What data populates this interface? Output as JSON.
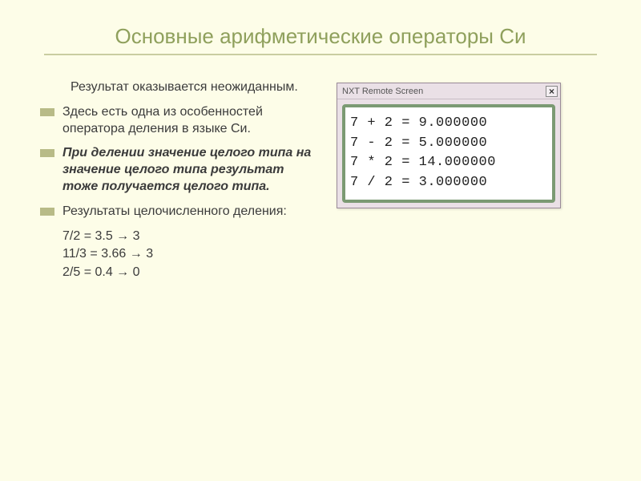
{
  "title": "Основные арифметические операторы Си",
  "intro": "Результат оказывается неожиданным.",
  "bullets": [
    {
      "text": "Здесь есть одна из особенностей оператора деления в языке Си.",
      "bold": false
    },
    {
      "text": "При делении значение целого типа на значение целого типа результат тоже получается целого типа.",
      "bold": true
    },
    {
      "text": "Результаты целочисленного деления:",
      "bold": false
    }
  ],
  "div_examples": [
    "7/2 = 3.5 → 3",
    "11/3 = 3.66 → 3",
    "2/5 = 0.4 → 0"
  ],
  "window": {
    "title": "NXT Remote Screen",
    "close_glyph": "×",
    "lines": [
      "7 + 2 = 9.000000",
      "7 - 2 = 5.000000",
      "7 * 2 = 14.000000",
      "7 / 2 = 3.000000"
    ],
    "border_color": "#7b9a73",
    "bg": "#eae0e6"
  },
  "colors": {
    "slide_bg": "#fdfde8",
    "title_color": "#8fa05c",
    "underline": "#c9cda0",
    "bullet": "#b8bb87",
    "body_text": "#3b3b3b"
  },
  "typography": {
    "title_fontsize": 26,
    "body_fontsize": 16,
    "code_fontsize": 17,
    "code_family": "Courier New"
  }
}
